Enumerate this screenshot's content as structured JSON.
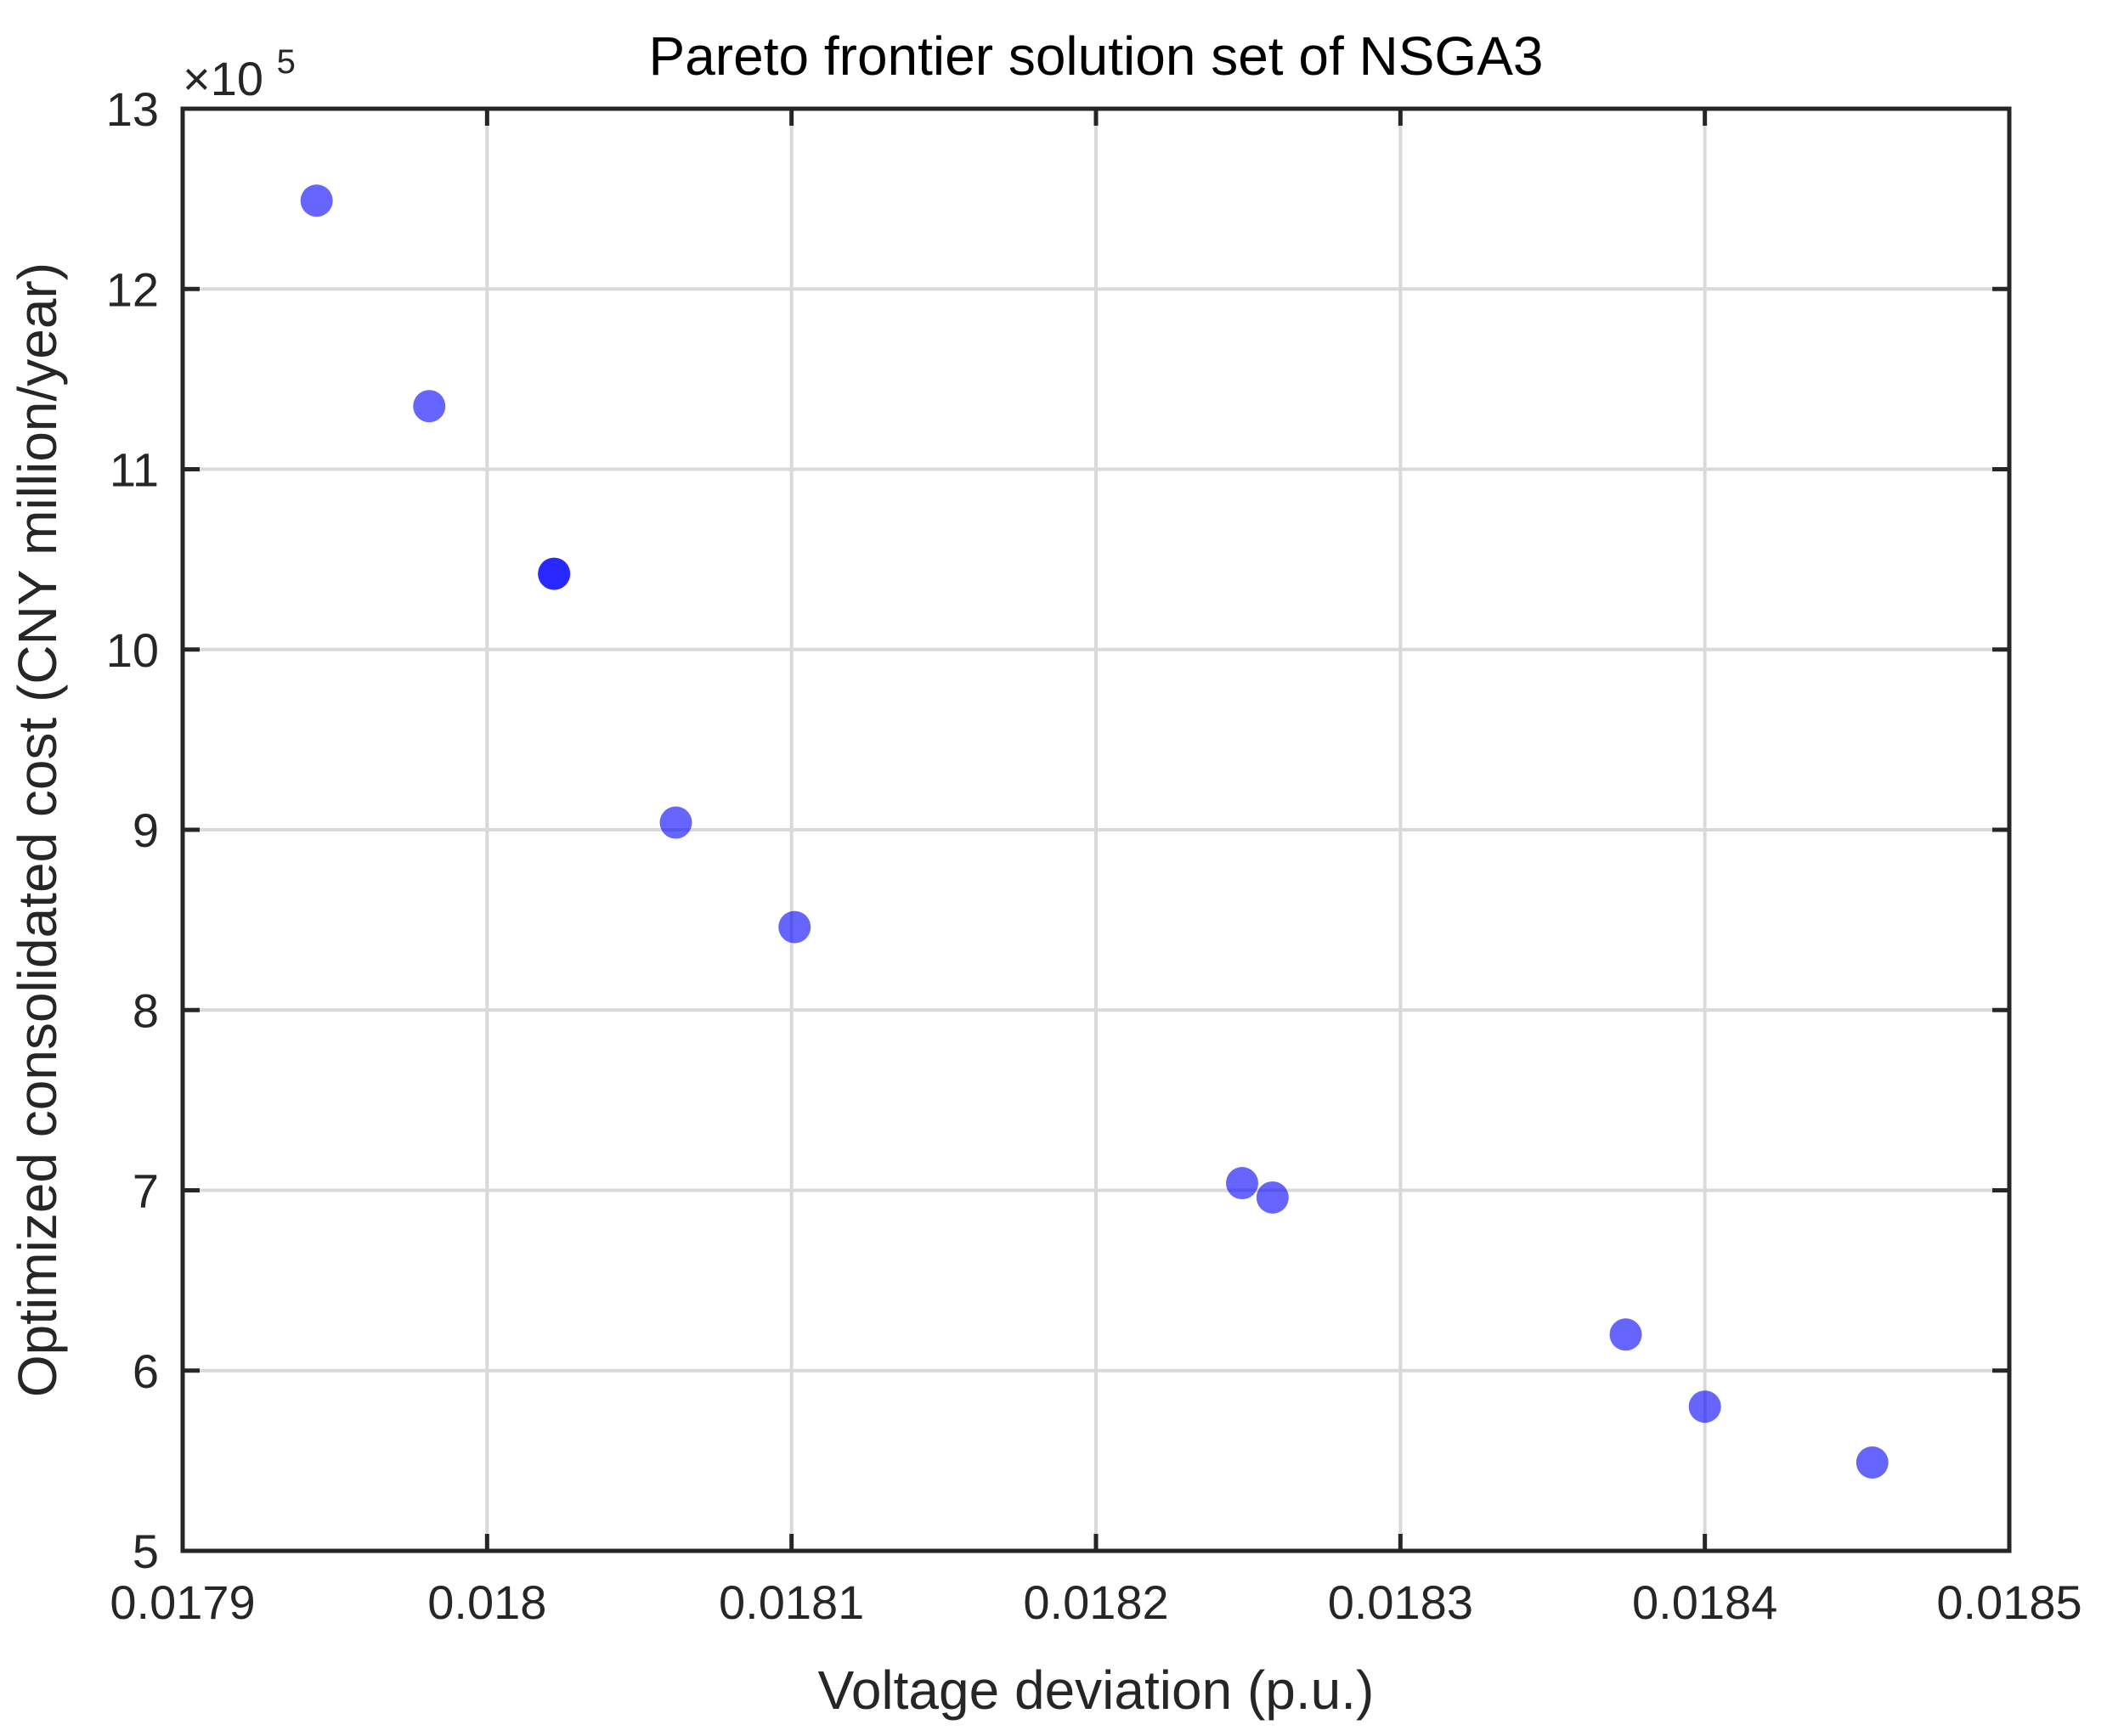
{
  "chart_data": {
    "type": "scatter",
    "title": "Pareto frontier solution set of NSGA3",
    "xlabel": "Voltage deviation (p.u.)",
    "ylabel": "Optimized consolidated cost (CNY million/year)",
    "xlim": [
      0.0179,
      0.0185
    ],
    "ylim": [
      5,
      13
    ],
    "y_multiplier": {
      "prefix": "×10",
      "exponent": "5"
    },
    "xticks": [
      0.0179,
      0.018,
      0.0181,
      0.0182,
      0.0183,
      0.0184,
      0.0185
    ],
    "xtick_labels": [
      "0.0179",
      "0.018",
      "0.0181",
      "0.0182",
      "0.0183",
      "0.0184",
      "0.0185"
    ],
    "yticks": [
      5,
      6,
      7,
      8,
      9,
      10,
      11,
      12,
      13
    ],
    "ytick_labels": [
      "5",
      "6",
      "7",
      "8",
      "9",
      "10",
      "11",
      "12",
      "13"
    ],
    "grid": true,
    "marker_color": "#0000ff",
    "marker_alpha": 0.6,
    "points": [
      {
        "x": 0.017944,
        "y": 12.49
      },
      {
        "x": 0.017981,
        "y": 11.35
      },
      {
        "x": 0.018022,
        "y": 10.42
      },
      {
        "x": 0.018022,
        "y": 10.42
      },
      {
        "x": 0.018062,
        "y": 9.04
      },
      {
        "x": 0.018101,
        "y": 8.46
      },
      {
        "x": 0.018248,
        "y": 7.04
      },
      {
        "x": 0.018258,
        "y": 6.96
      },
      {
        "x": 0.018374,
        "y": 6.2
      },
      {
        "x": 0.0184,
        "y": 5.8
      },
      {
        "x": 0.018455,
        "y": 5.49
      }
    ]
  }
}
